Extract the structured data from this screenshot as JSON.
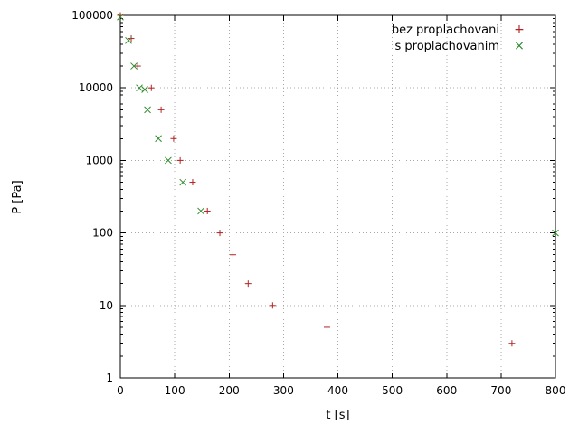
{
  "chart_data": {
    "type": "scatter",
    "title": "",
    "xlabel": "t [s]",
    "ylabel": "P [Pa]",
    "xlim": [
      0,
      800
    ],
    "x_ticks": [
      0,
      100,
      200,
      300,
      400,
      500,
      600,
      700,
      800
    ],
    "ylim": [
      1,
      100000
    ],
    "y_scale": "log",
    "y_ticks": [
      "1",
      "10",
      "100",
      "1000",
      "10000",
      "100000"
    ],
    "grid": true,
    "legend_position": "top-right-inside",
    "series": [
      {
        "name": "bez proplachovani",
        "marker": "plus",
        "marker_glyph": "+",
        "color": "#b22222",
        "points": [
          [
            0,
            100000
          ],
          [
            20,
            48000
          ],
          [
            32,
            20000
          ],
          [
            57,
            10000
          ],
          [
            75,
            5000
          ],
          [
            98,
            2000
          ],
          [
            110,
            1000
          ],
          [
            133,
            500
          ],
          [
            160,
            200
          ],
          [
            183,
            100
          ],
          [
            207,
            50
          ],
          [
            235,
            20
          ],
          [
            280,
            10
          ],
          [
            380,
            5
          ],
          [
            720,
            3
          ]
        ]
      },
      {
        "name": "s proplachovanim",
        "marker": "cross",
        "marker_glyph": "×",
        "color": "#2e8b2e",
        "points": [
          [
            0,
            95000
          ],
          [
            15,
            45000
          ],
          [
            25,
            20000
          ],
          [
            35,
            10000
          ],
          [
            45,
            9500
          ],
          [
            50,
            5000
          ],
          [
            70,
            2000
          ],
          [
            88,
            1000
          ],
          [
            115,
            500
          ],
          [
            148,
            200
          ],
          [
            800,
            100
          ]
        ]
      }
    ]
  }
}
